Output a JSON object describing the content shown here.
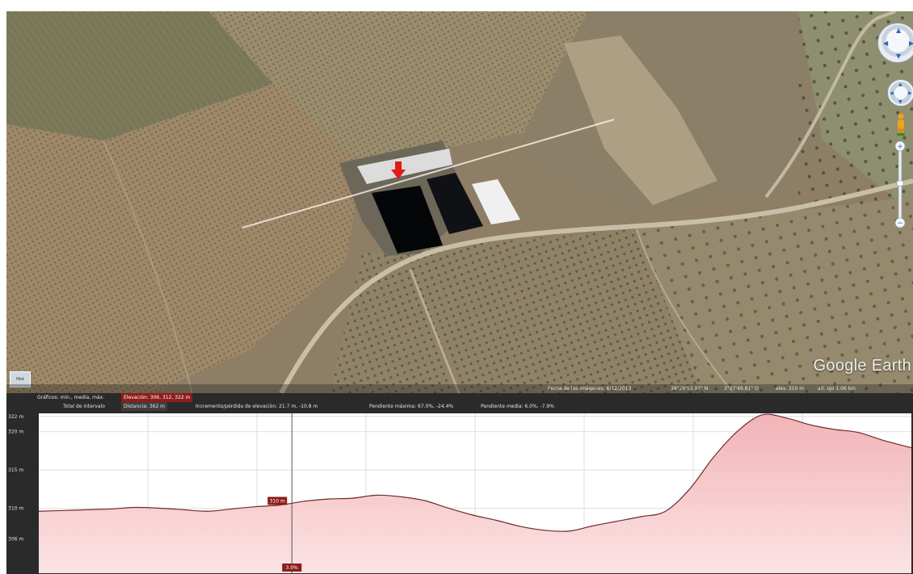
{
  "map": {
    "logo_text": "Google Earth",
    "thumbnail_label": "Hist",
    "status": {
      "imagery_date": "Fecha de las imágenes: 6/12/2013",
      "coords_lat": "38°26'53.97\" N",
      "coords_lon": "3°27'49.81\" O",
      "elevation": "elev. 310 m",
      "eye_alt": "alt. ojo 1.06 km"
    },
    "controls": {
      "look_icon": "look-around-compass-icon",
      "move_icon": "move-navigation-icon",
      "street_view_icon": "pegman-icon",
      "zoom_in": "+",
      "zoom_out": "−"
    }
  },
  "profile": {
    "row1": {
      "graph_label": "Gráficos: mín., media, máx.",
      "elevation_chip": "Elevación: 306, 312, 322 m"
    },
    "row2": {
      "totals_label": "Total de intervalo",
      "distance": "Distancia: 362 m",
      "elev_gain": "Incremento/pérdida de elevación: 21.7 m, -10.8 m",
      "max_slope": "Pendiente máxima: 67.0%, -24.4%",
      "avg_slope": "Pendiente media: 6.0%, -7.9%"
    },
    "cursor_elev_label": "310 m",
    "cursor_slope_label": "3.0%",
    "colors": {
      "fill_top": "#f2b4b7",
      "fill_bottom": "#fbe3e4",
      "line": "#6e2a2a",
      "chip": "#8e1c1c"
    }
  },
  "chart_data": {
    "type": "area",
    "title": "",
    "xlabel": "",
    "ylabel": "",
    "y_tick_labels": [
      "322 m",
      "320 m",
      "315 m",
      "310 m",
      "306 m"
    ],
    "yticks": [
      322,
      320,
      315,
      310,
      306
    ],
    "ylim": [
      301.5,
      322.4
    ],
    "x_units": "m",
    "xlim": [
      0,
      362
    ],
    "x": [
      0,
      10,
      20,
      30,
      40,
      50,
      60,
      70,
      80,
      90,
      100,
      110,
      120,
      130,
      140,
      150,
      160,
      170,
      180,
      190,
      200,
      210,
      220,
      230,
      240,
      250,
      260,
      270,
      280,
      290,
      300,
      310,
      320,
      330,
      340,
      350,
      362
    ],
    "y": [
      309.6,
      309.7,
      309.8,
      309.9,
      310.1,
      310.0,
      309.8,
      309.6,
      309.9,
      310.2,
      310.4,
      310.9,
      311.2,
      311.3,
      311.7,
      311.5,
      311.0,
      310.0,
      309.1,
      308.4,
      307.6,
      307.1,
      307.0,
      307.7,
      308.3,
      308.9,
      309.6,
      312.5,
      316.7,
      320.1,
      322.2,
      321.8,
      320.9,
      320.3,
      319.9,
      318.9,
      317.9
    ],
    "cursor_x": 105,
    "cursor_elevation": 310,
    "cursor_slope": "3.0%",
    "grid": true,
    "vertical_grid_lines": 7
  }
}
